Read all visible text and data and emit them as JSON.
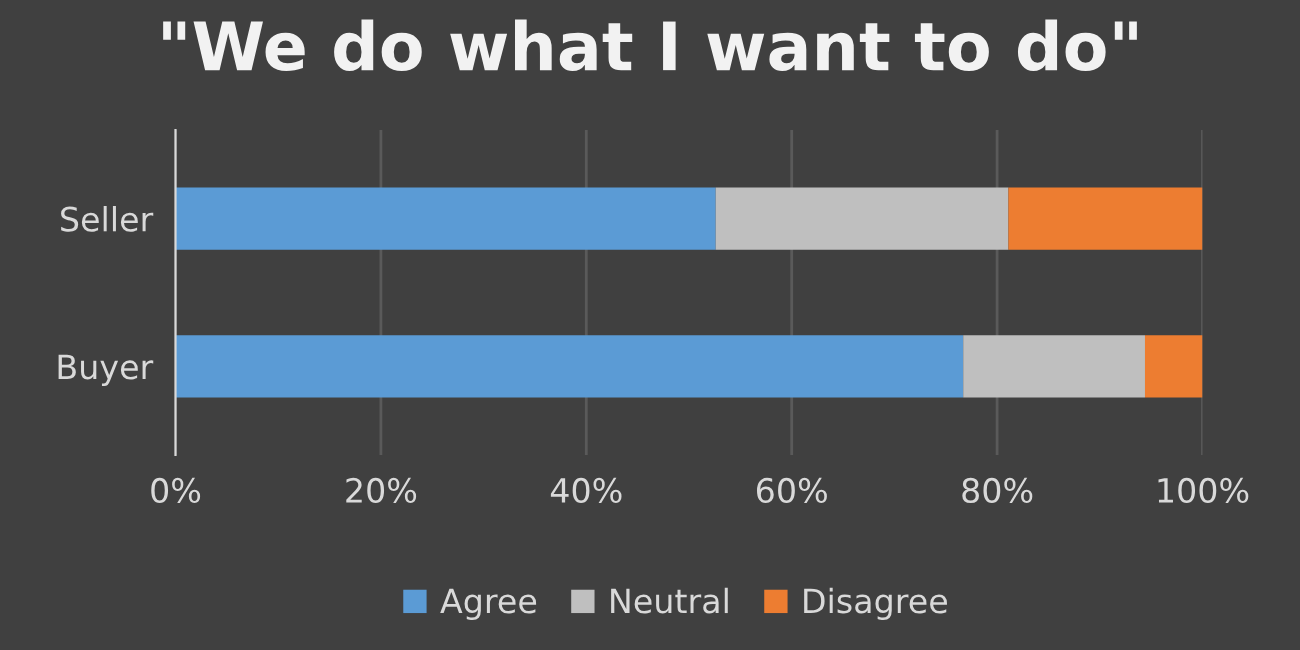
{
  "chart_data": {
    "type": "bar",
    "title": "\"We do what I want to do\"",
    "orientation": "horizontal",
    "stacked": true,
    "categories": [
      "Seller",
      "Buyer"
    ],
    "series": [
      {
        "name": "Agree",
        "color": "#5b9bd5",
        "values": [
          52.6,
          76.7
        ]
      },
      {
        "name": "Neutral",
        "color": "#bfbfbf",
        "values": [
          28.5,
          17.7
        ]
      },
      {
        "name": "Disagree",
        "color": "#ed7d31",
        "values": [
          18.9,
          5.6
        ]
      }
    ],
    "xlim": [
      0,
      100
    ],
    "xticks": [
      {
        "value": 0,
        "label": "0%"
      },
      {
        "value": 20,
        "label": "20%"
      },
      {
        "value": 40,
        "label": "40%"
      },
      {
        "value": 60,
        "label": "60%"
      },
      {
        "value": 80,
        "label": "80%"
      },
      {
        "value": 100,
        "label": "100%"
      }
    ],
    "grid": "x",
    "legend": "bottom"
  }
}
